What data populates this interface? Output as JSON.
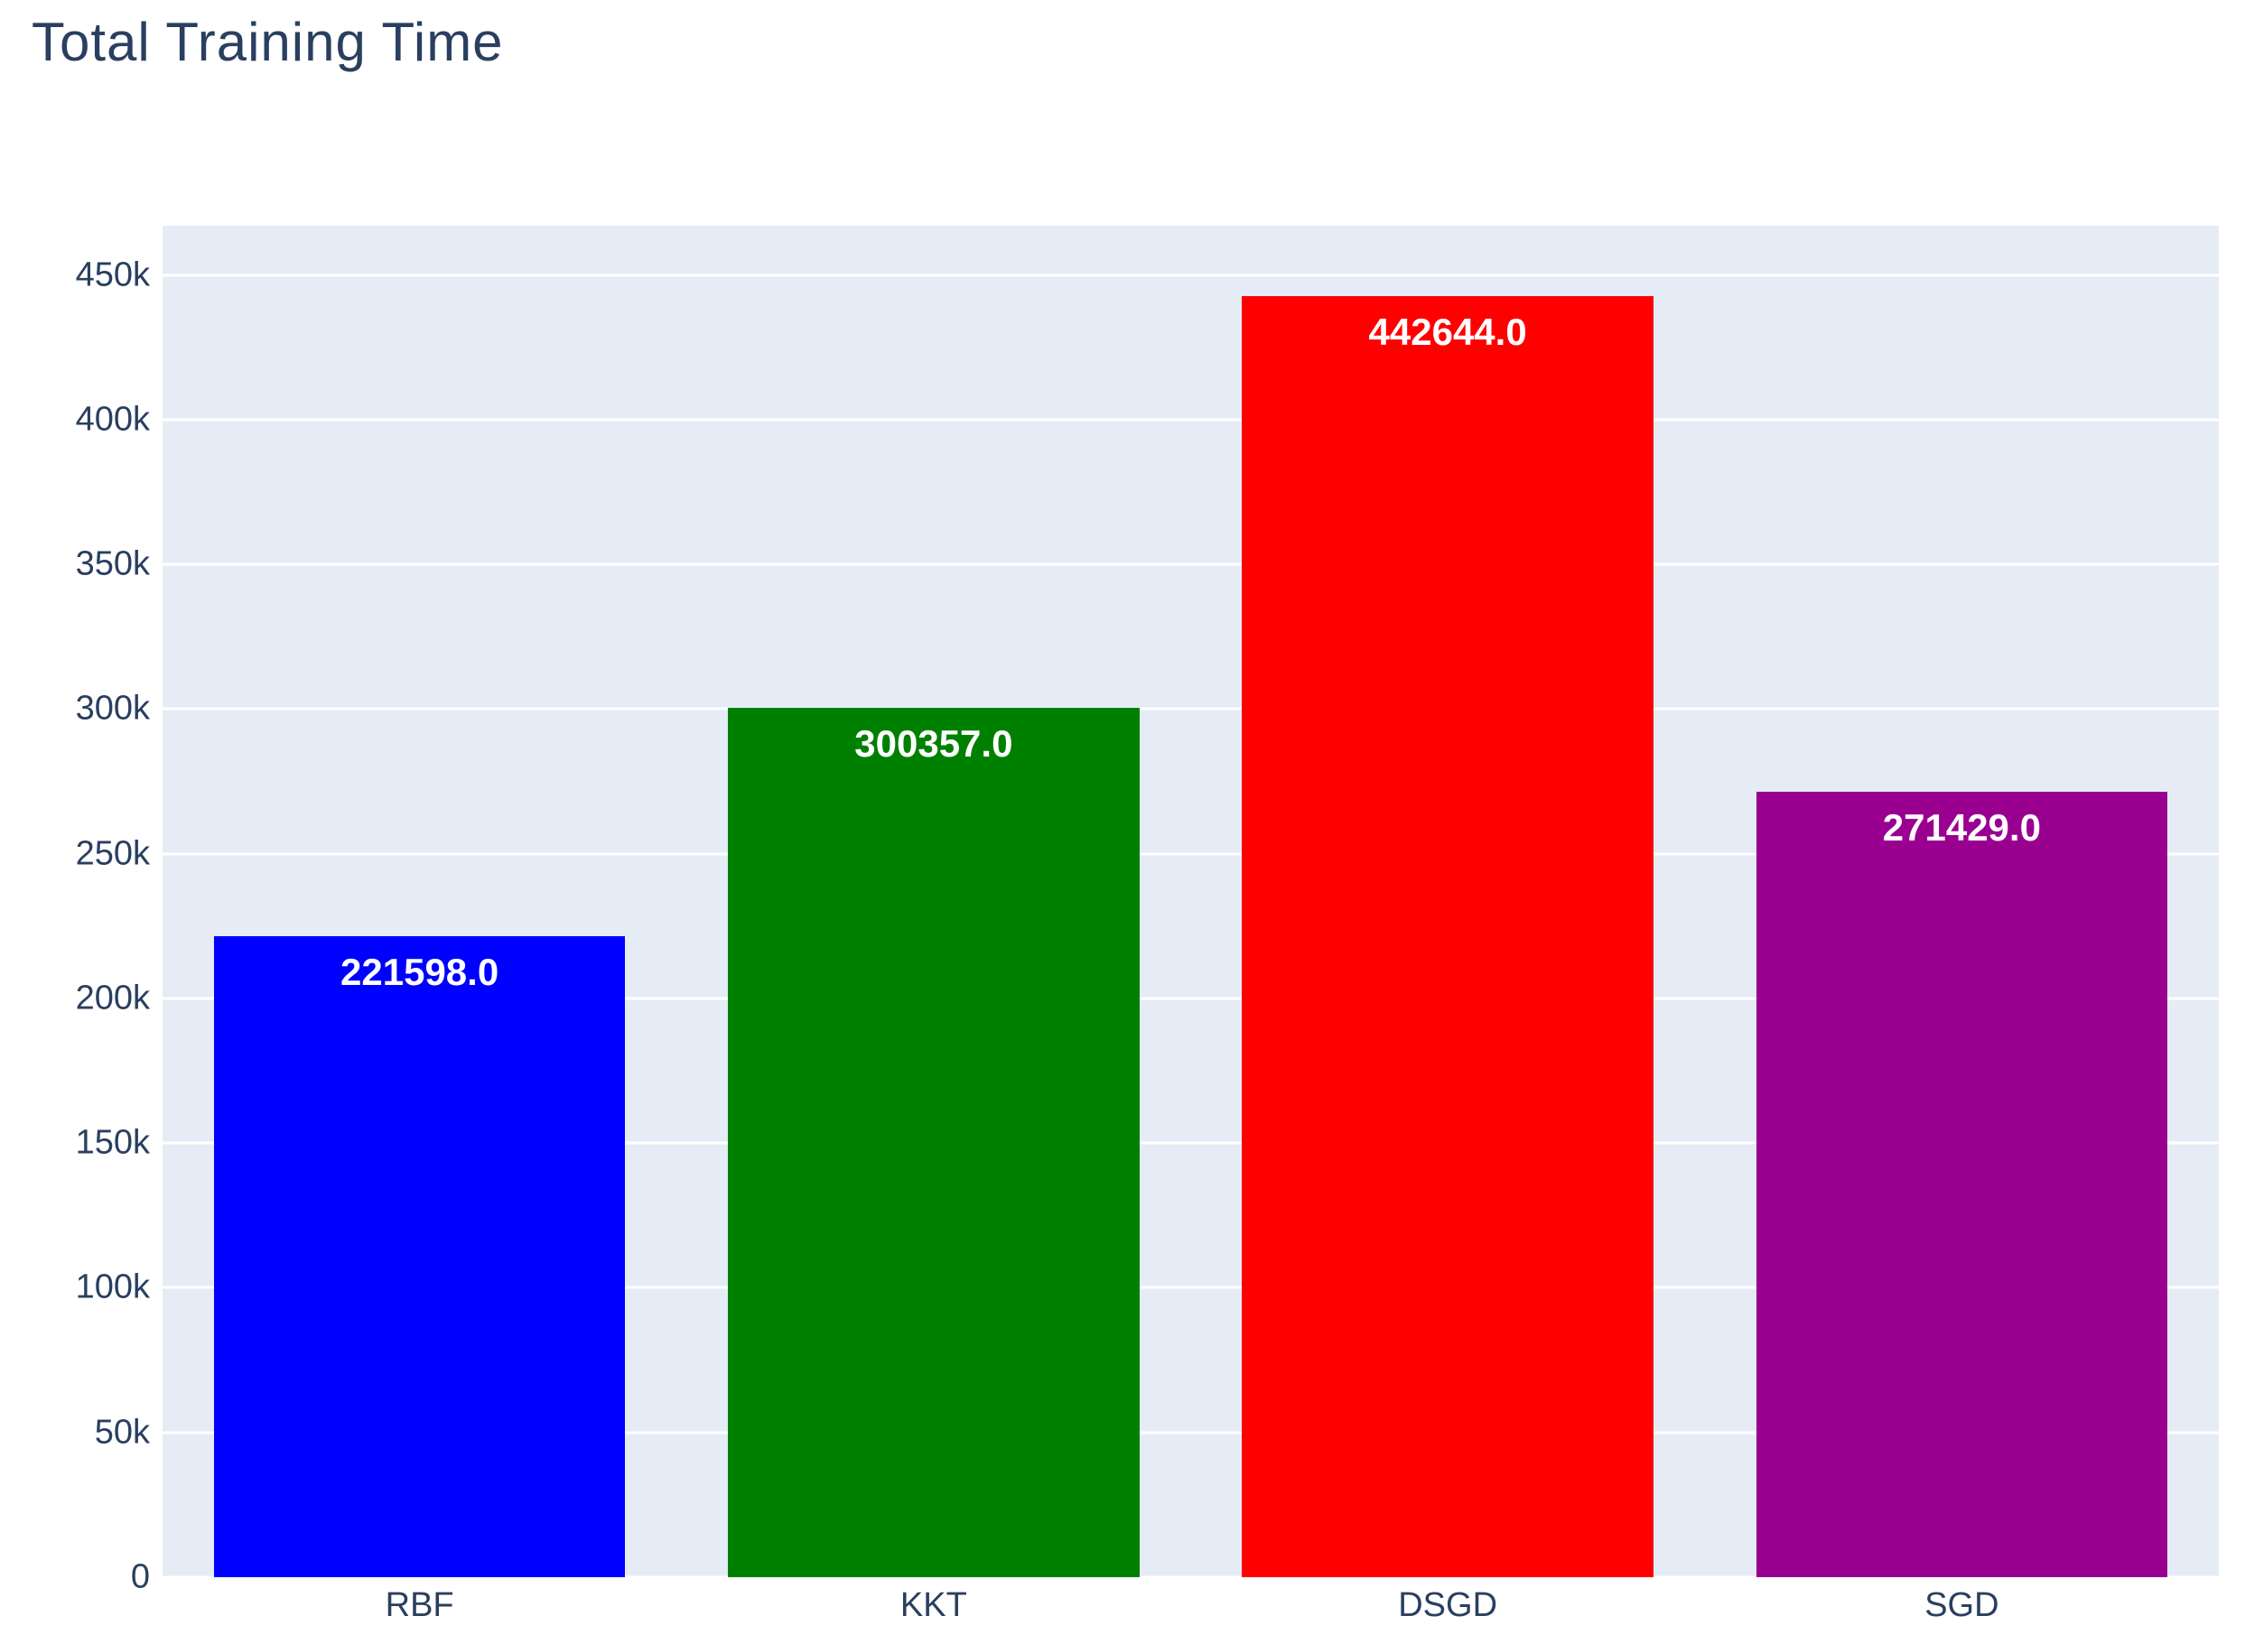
{
  "chart_data": {
    "type": "bar",
    "title": "Total Training Time",
    "categories": [
      "RBF",
      "KKT",
      "DSGD",
      "SGD"
    ],
    "values": [
      221598.0,
      300357.0,
      442644.0,
      271429.0
    ],
    "value_labels": [
      "221598.0",
      "300357.0",
      "442644.0",
      "271429.0"
    ],
    "bar_colors": [
      "#0000ff",
      "#008000",
      "#ff0000",
      "#9a0090"
    ],
    "xlabel": "",
    "ylabel": "",
    "ylim": [
      0,
      467000
    ],
    "yticks": [
      {
        "value": 0,
        "label": "0"
      },
      {
        "value": 50000,
        "label": "50k"
      },
      {
        "value": 100000,
        "label": "100k"
      },
      {
        "value": 150000,
        "label": "150k"
      },
      {
        "value": 200000,
        "label": "200k"
      },
      {
        "value": 250000,
        "label": "250k"
      },
      {
        "value": 300000,
        "label": "300k"
      },
      {
        "value": 350000,
        "label": "350k"
      },
      {
        "value": 400000,
        "label": "400k"
      },
      {
        "value": 450000,
        "label": "450k"
      }
    ],
    "grid": true,
    "legend_position": "none",
    "bar_slot_fraction": 0.8,
    "colors": {
      "page_background": "#ffffff",
      "plot_background": "#e5ecf6",
      "gridline": "#ffffff",
      "text": "#2a3f5f",
      "bar_label_text": "#ffffff"
    }
  }
}
